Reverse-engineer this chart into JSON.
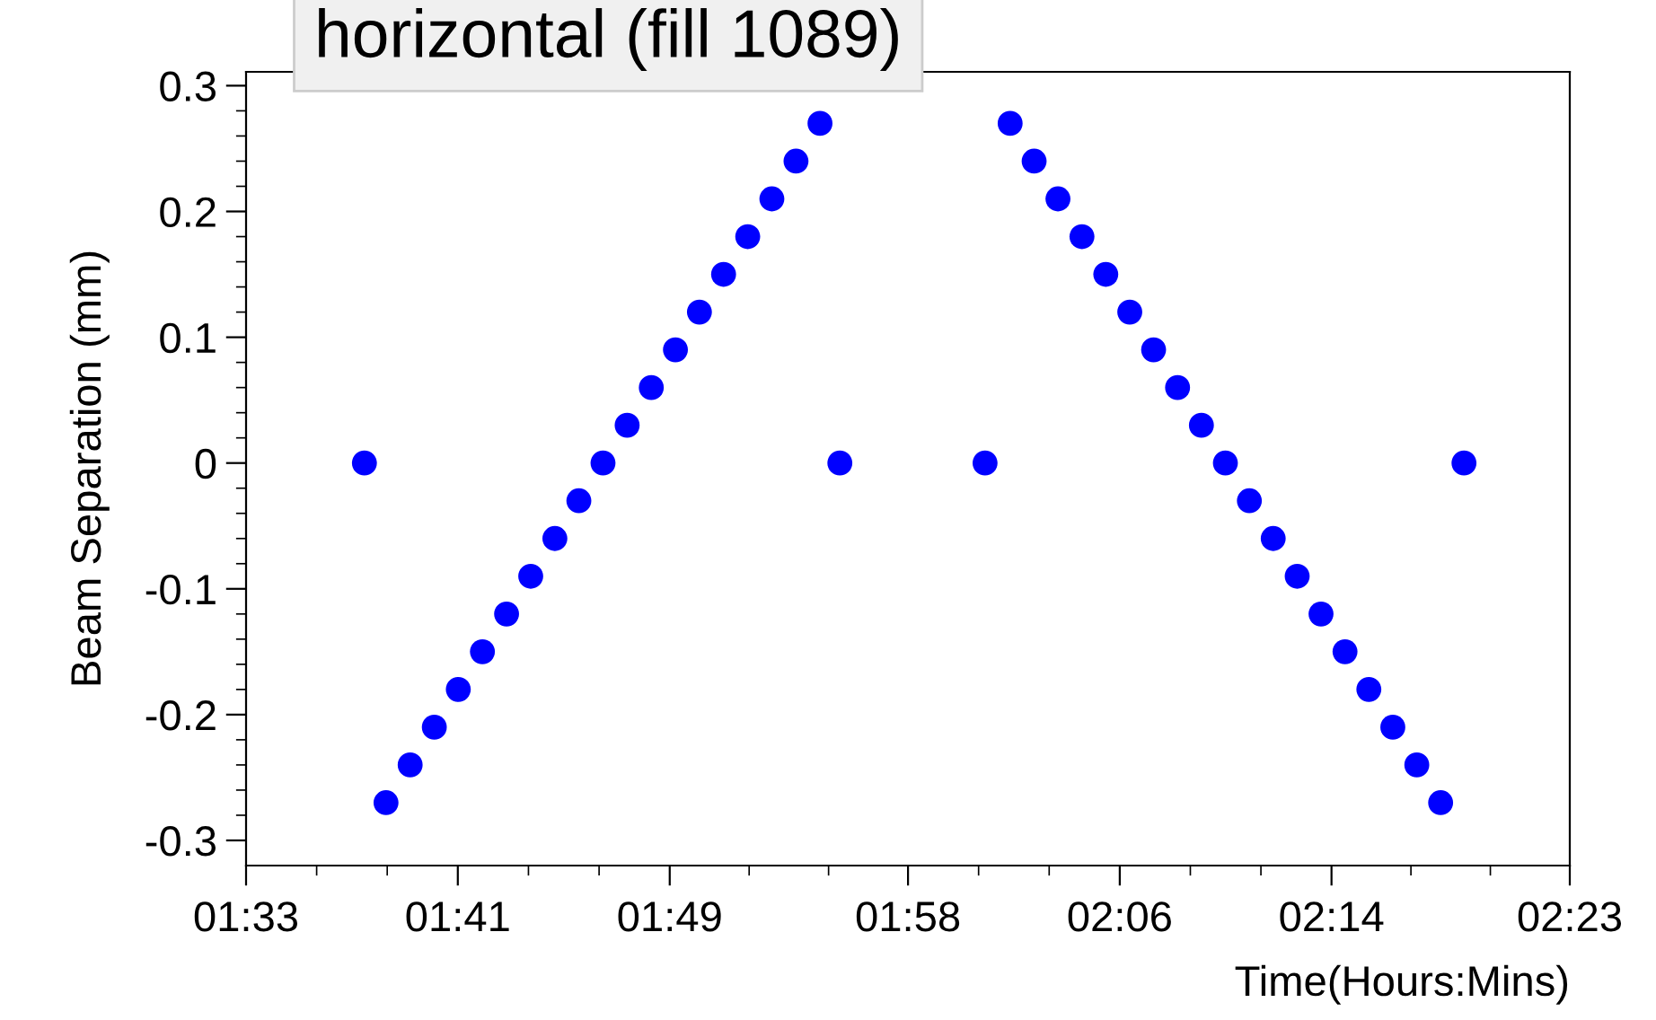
{
  "chart_data": {
    "type": "scatter",
    "title": "horizontal (fill 1089)",
    "xlabel": "Time(Hours:Mins)",
    "ylabel": "Beam Separation (mm)",
    "x": [
      1.6245,
      1.6381,
      1.6533,
      1.6685,
      1.6836,
      1.6988,
      1.714,
      1.7292,
      1.7444,
      1.7595,
      1.7747,
      1.7899,
      1.8051,
      1.8203,
      1.8354,
      1.8506,
      1.8658,
      1.881,
      1.8962,
      1.9113,
      1.9238,
      2.0152,
      2.031,
      2.0461,
      2.0611,
      2.0762,
      2.0912,
      2.1063,
      2.1213,
      2.1364,
      2.1514,
      2.1665,
      2.1816,
      2.1966,
      2.2117,
      2.2267,
      2.2418,
      2.2568,
      2.2719,
      2.287,
      2.302,
      2.3167
    ],
    "values": [
      0,
      -0.27,
      -0.24,
      -0.21,
      -0.18,
      -0.15,
      -0.12,
      -0.09,
      -0.06,
      -0.03,
      0,
      0.03,
      0.06,
      0.09,
      0.12,
      0.15,
      0.18,
      0.21,
      0.24,
      0.27,
      0,
      0,
      0.27,
      0.24,
      0.21,
      0.18,
      0.15,
      0.12,
      0.09,
      0.06,
      0.03,
      0,
      -0.03,
      -0.06,
      -0.09,
      -0.12,
      -0.15,
      -0.18,
      -0.21,
      -0.24,
      -0.27,
      0
    ],
    "color": "#0000ff",
    "marker": "circle",
    "xlim": [
      1.55,
      2.3833
    ],
    "xticks": [
      {
        "value": 1.55,
        "label": "01:33"
      },
      {
        "value": 1.6833,
        "label": "01:41"
      },
      {
        "value": 1.8167,
        "label": "01:49"
      },
      {
        "value": 1.9667,
        "label": "01:58"
      },
      {
        "value": 2.1,
        "label": "02:06"
      },
      {
        "value": 2.2333,
        "label": "02:14"
      },
      {
        "value": 2.3833,
        "label": "02:23"
      }
    ],
    "ylim": [
      -0.32,
      0.311
    ],
    "yticks": [
      -0.3,
      -0.2,
      -0.1,
      0,
      0.1,
      0.2,
      0.3
    ]
  }
}
